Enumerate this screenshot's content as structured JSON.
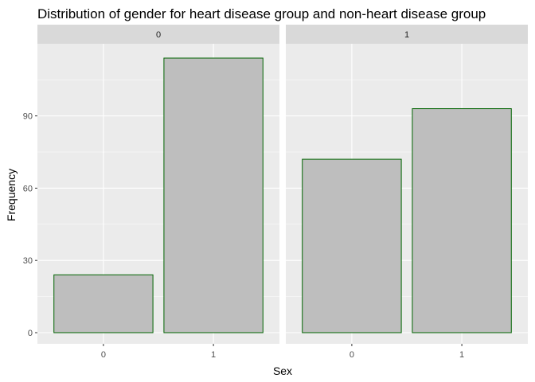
{
  "chart_data": {
    "type": "bar",
    "title": "Distribution of gender for heart disease group and non-heart disease group",
    "xlabel": "Sex",
    "ylabel": "Frequency",
    "ylim": [
      0,
      120
    ],
    "yticks": [
      "0",
      "30",
      "60",
      "90"
    ],
    "categories": [
      "0",
      "1"
    ],
    "facets": [
      {
        "label": "0",
        "values": [
          24,
          114
        ]
      },
      {
        "label": "1",
        "values": [
          72,
          93
        ]
      }
    ],
    "colors": {
      "bar_fill": "#bebebe",
      "bar_outline": "#006400",
      "panel_bg": "#ebebeb",
      "strip_bg": "#d9d9d9",
      "grid": "#ffffff"
    },
    "grid": true
  }
}
